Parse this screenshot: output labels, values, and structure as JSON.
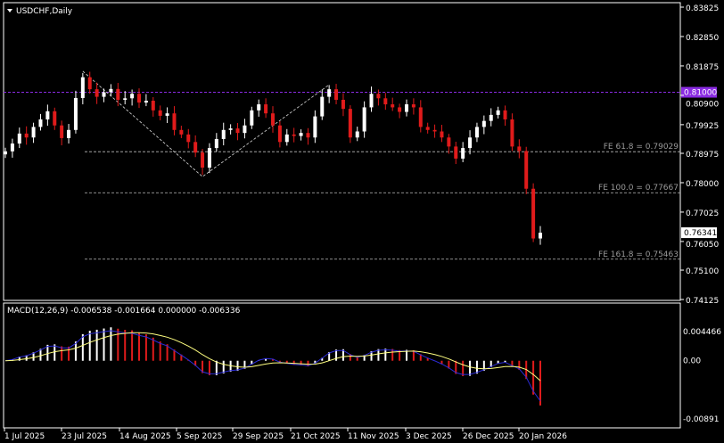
{
  "chart_data": {
    "type": "candlestick",
    "title": "USDCHF,Daily",
    "symbol": "USDCHF",
    "timeframe": "Daily",
    "ylim": [
      0.74125,
      0.83825
    ],
    "y_ticks": [
      "0.83825",
      "0.82850",
      "0.81875",
      "0.80900",
      "0.79925",
      "0.78975",
      "0.78000",
      "0.77025",
      "0.76050",
      "0.75100",
      "0.74125"
    ],
    "x_ticks": [
      "1 Jul 2025",
      "23 Jul 2025",
      "14 Aug 2025",
      "5 Sep 2025",
      "29 Sep 2025",
      "21 Oct 2025",
      "11 Nov 2025",
      "3 Dec 2025",
      "26 Dec 2025",
      "20 Jan 2026"
    ],
    "closes": [
      0.7904,
      0.793,
      0.7963,
      0.795,
      0.7985,
      0.801,
      0.8037,
      0.799,
      0.7948,
      0.7975,
      0.8081,
      0.815,
      0.811,
      0.8085,
      0.81,
      0.8111,
      0.8075,
      0.808,
      0.8095,
      0.8066,
      0.8072,
      0.804,
      0.8022,
      0.803,
      0.7975,
      0.796,
      0.7935,
      0.79,
      0.785,
      0.7915,
      0.7945,
      0.7975,
      0.798,
      0.7965,
      0.799,
      0.804,
      0.806,
      0.803,
      0.799,
      0.7935,
      0.796,
      0.7955,
      0.7965,
      0.795,
      0.802,
      0.8085,
      0.811,
      0.8075,
      0.8045,
      0.795,
      0.797,
      0.805,
      0.8095,
      0.808,
      0.806,
      0.805,
      0.8035,
      0.806,
      0.805,
      0.7985,
      0.7975,
      0.797,
      0.795,
      0.792,
      0.788,
      0.7915,
      0.795,
      0.7985,
      0.8005,
      0.8025,
      0.804,
      0.801,
      0.792,
      0.7905,
      0.778,
      0.7615,
      0.7634
    ],
    "current_price": "0.76341",
    "horizontal_line": {
      "price": 0.81,
      "label": "0.81000",
      "color": "#8a2be2"
    },
    "fibo_levels": [
      {
        "label": "FE 61.8 = 0.79029",
        "price": 0.79029
      },
      {
        "label": "FE 100.0 = 0.77667",
        "price": 0.77667
      },
      {
        "label": "FE 161.8 = 0.75463",
        "price": 0.75463
      }
    ],
    "zigzag_prices": [
      0.817,
      0.782,
      0.8125
    ],
    "colors": {
      "bull": "#ffffff",
      "bear": "#e01b1b",
      "background": "#000000",
      "macd_signal": "#ffff80",
      "macd_line": "#2b2bd6"
    },
    "macd": {
      "label": "MACD(12,26,9) -0.006538 -0.001664 0.000000 -0.006336",
      "ylim": [
        -0.00891,
        0.004466
      ],
      "y_ticks": [
        "0.004466",
        "0.00",
        "-0.00891"
      ]
    }
  }
}
